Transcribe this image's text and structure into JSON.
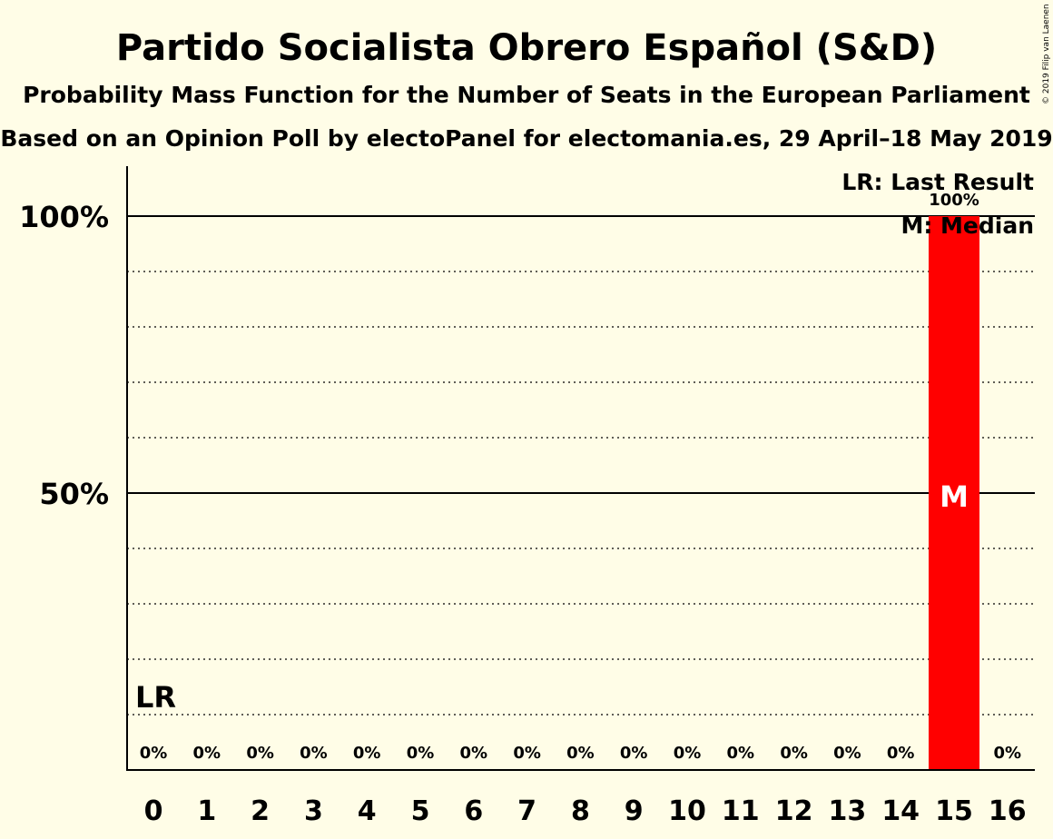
{
  "chart_data": {
    "type": "bar",
    "title": "Partido Socialista Obrero Español (S&D)",
    "subtitle": "Probability Mass Function for the Number of Seats in the European Parliament",
    "subtitle2": "Based on an Opinion Poll by electoPanel for electomania.es, 29 April–18 May 2019",
    "copyright": "© 2019 Filip van Laenen",
    "categories": [
      "0",
      "1",
      "2",
      "3",
      "4",
      "5",
      "6",
      "7",
      "8",
      "9",
      "10",
      "11",
      "12",
      "13",
      "14",
      "15",
      "16"
    ],
    "values": [
      0,
      0,
      0,
      0,
      0,
      0,
      0,
      0,
      0,
      0,
      0,
      0,
      0,
      0,
      0,
      100,
      0
    ],
    "value_labels": [
      "0%",
      "0%",
      "0%",
      "0%",
      "0%",
      "0%",
      "0%",
      "0%",
      "0%",
      "0%",
      "0%",
      "0%",
      "0%",
      "0%",
      "0%",
      "100%",
      "0%"
    ],
    "ylim": [
      0,
      110
    ],
    "yticks": [
      {
        "value": 50,
        "label": "50%"
      },
      {
        "value": 100,
        "label": "100%"
      }
    ],
    "minor_gridlines": [
      10,
      20,
      30,
      40,
      60,
      70,
      80,
      90
    ],
    "bar_color": "#ff0000",
    "background_color": "#fffde7",
    "last_result": {
      "seat": "0",
      "marker": "LR"
    },
    "median": {
      "seat": "15",
      "marker": "M"
    },
    "legend": {
      "position": "top-right",
      "entries": [
        "LR: Last Result",
        "M: Median"
      ]
    }
  }
}
